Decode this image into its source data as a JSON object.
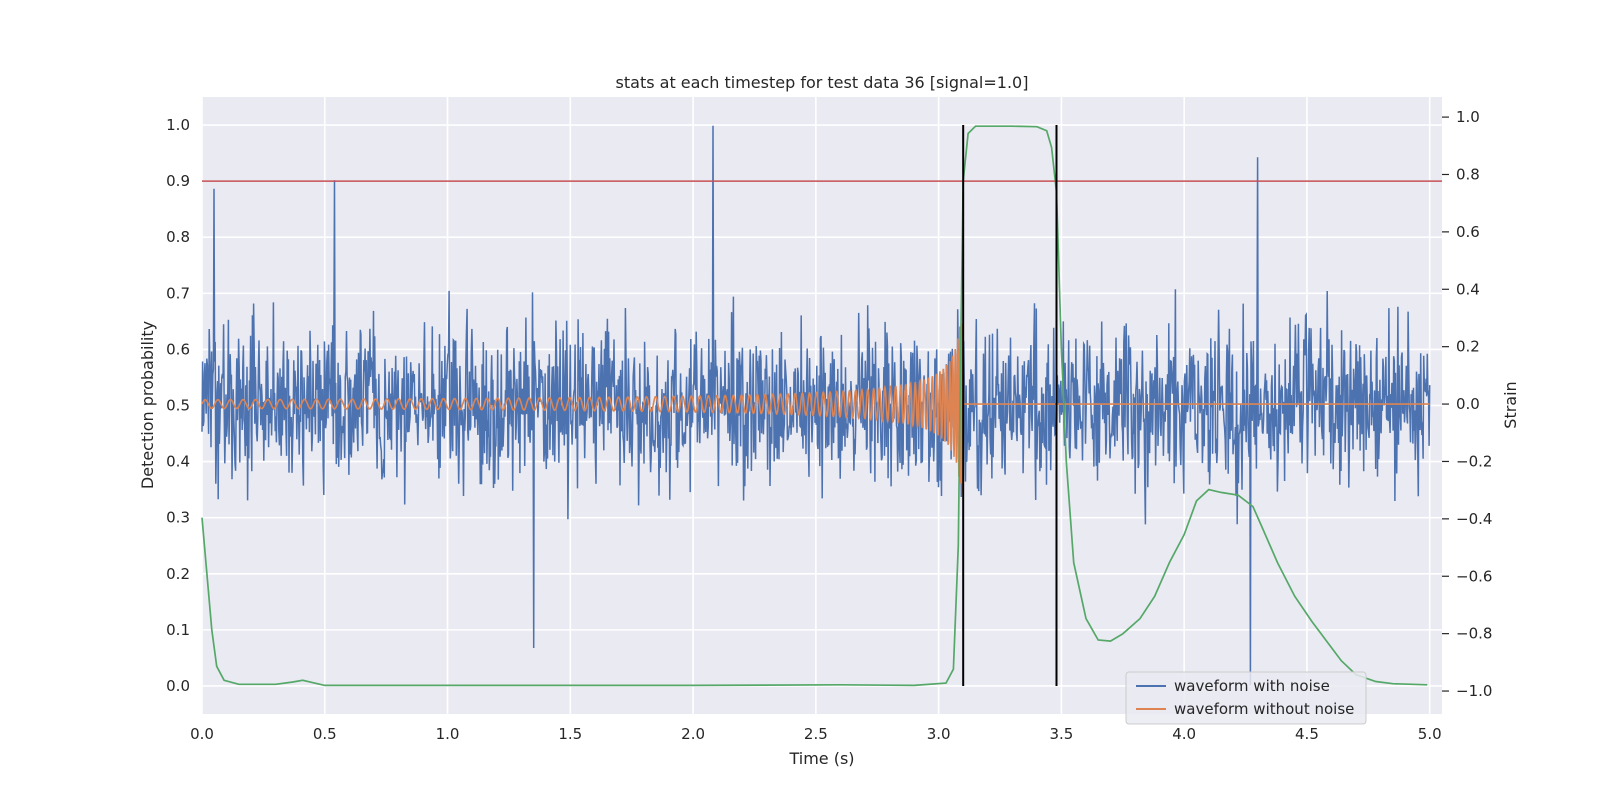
{
  "chart_data": {
    "type": "line",
    "title": "stats at each timestep for test data 36 [signal=1.0]",
    "xlabel": "Time (s)",
    "ylabel": "Detection probability",
    "ylabel_right": "Strain",
    "xlim": [
      0.0,
      5.05
    ],
    "ylim": [
      -0.05,
      1.05
    ],
    "ylim_right": [
      -1.08,
      1.07
    ],
    "grid": true,
    "legend_position": "lower right",
    "x_ticks": [
      "0.0",
      "0.5",
      "1.0",
      "1.5",
      "2.0",
      "2.5",
      "3.0",
      "3.5",
      "4.0",
      "4.5",
      "5.0"
    ],
    "y_ticks_left": [
      "0.0",
      "0.1",
      "0.2",
      "0.3",
      "0.4",
      "0.5",
      "0.6",
      "0.7",
      "0.8",
      "0.9",
      "1.0"
    ],
    "y_ticks_right": [
      "−1.0",
      "−0.8",
      "−0.6",
      "−0.4",
      "−0.2",
      "0.0",
      "0.2",
      "0.4",
      "0.6",
      "0.8",
      "1.0"
    ],
    "threshold": {
      "y": 0.9,
      "color": "#c44e52"
    },
    "vertical_markers": [
      3.1,
      3.48
    ],
    "series": [
      {
        "name": "waveform with noise",
        "axis": "right",
        "color": "#4c72b0",
        "generated_noise": {
          "x_start": 0.0,
          "x_end": 5.0,
          "samples": 2048,
          "typical_amplitude": 0.35,
          "peak_amplitude": 0.75
        },
        "note_peaks": [
          [
            0.05,
            0.75
          ],
          [
            0.54,
            0.78
          ],
          [
            2.08,
            0.97
          ],
          [
            4.3,
            0.86
          ],
          [
            1.35,
            -0.85
          ],
          [
            4.27,
            -0.98
          ]
        ]
      },
      {
        "name": "waveform without noise",
        "axis": "right",
        "color": "#dd8452",
        "chirp": {
          "x_start": 0.0,
          "x_merger": 3.1,
          "x_end": 5.0,
          "amplitude_start": 0.015,
          "amplitude_peak": 0.32
        }
      },
      {
        "axis": "left",
        "color": "#55a868",
        "points": [
          [
            0.0,
            0.3
          ],
          [
            0.02,
            0.2
          ],
          [
            0.04,
            0.1
          ],
          [
            0.06,
            0.035
          ],
          [
            0.09,
            0.01
          ],
          [
            0.15,
            0.003
          ],
          [
            0.3,
            0.003
          ],
          [
            0.37,
            0.007
          ],
          [
            0.41,
            0.01
          ],
          [
            0.45,
            0.006
          ],
          [
            0.5,
            0.001
          ],
          [
            1.0,
            0.001
          ],
          [
            2.0,
            0.001
          ],
          [
            2.6,
            0.002
          ],
          [
            2.9,
            0.001
          ],
          [
            3.03,
            0.005
          ],
          [
            3.06,
            0.03
          ],
          [
            3.08,
            0.25
          ],
          [
            3.09,
            0.6
          ],
          [
            3.1,
            0.9
          ],
          [
            3.12,
            0.985
          ],
          [
            3.15,
            0.998
          ],
          [
            3.3,
            0.998
          ],
          [
            3.4,
            0.997
          ],
          [
            3.44,
            0.99
          ],
          [
            3.46,
            0.96
          ],
          [
            3.48,
            0.88
          ],
          [
            3.5,
            0.6
          ],
          [
            3.52,
            0.4
          ],
          [
            3.55,
            0.22
          ],
          [
            3.6,
            0.12
          ],
          [
            3.65,
            0.082
          ],
          [
            3.7,
            0.08
          ],
          [
            3.75,
            0.093
          ],
          [
            3.82,
            0.12
          ],
          [
            3.88,
            0.16
          ],
          [
            3.94,
            0.22
          ],
          [
            4.0,
            0.27
          ],
          [
            4.05,
            0.33
          ],
          [
            4.1,
            0.35
          ],
          [
            4.15,
            0.345
          ],
          [
            4.22,
            0.34
          ],
          [
            4.28,
            0.32
          ],
          [
            4.32,
            0.28
          ],
          [
            4.38,
            0.22
          ],
          [
            4.45,
            0.16
          ],
          [
            4.52,
            0.115
          ],
          [
            4.58,
            0.08
          ],
          [
            4.64,
            0.045
          ],
          [
            4.7,
            0.02
          ],
          [
            4.78,
            0.008
          ],
          [
            4.85,
            0.004
          ],
          [
            4.99,
            0.002
          ]
        ]
      }
    ]
  }
}
